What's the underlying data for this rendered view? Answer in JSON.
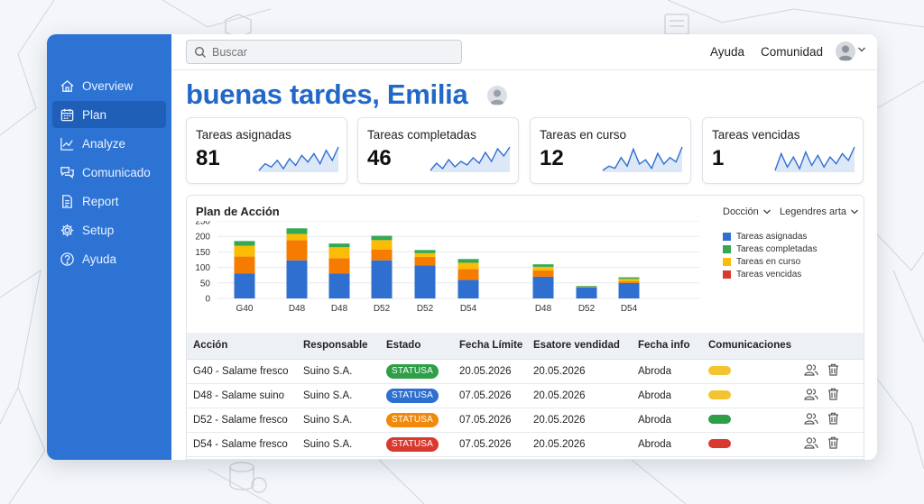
{
  "colors": {
    "sidebar": "#2d73d4",
    "primary": "#2268c9",
    "asignadas": "#2f6fd0",
    "completadas": "#34a853",
    "en_curso": "#fbbc05",
    "vencidas": "#e8411f",
    "orange": "#f57c00"
  },
  "sidebar": {
    "items": [
      {
        "label": "Overview",
        "icon": "home-icon"
      },
      {
        "label": "Plan",
        "icon": "calendar-icon",
        "active": true
      },
      {
        "label": "Analyze",
        "icon": "line-chart-icon"
      },
      {
        "label": "Comunicado",
        "icon": "chat-icon"
      },
      {
        "label": "Report",
        "icon": "document-icon"
      },
      {
        "label": "Setup",
        "icon": "gear-icon"
      },
      {
        "label": "Ayuda",
        "icon": "help-icon"
      }
    ]
  },
  "header": {
    "search_placeholder": "Buscar",
    "help_link": "Ayuda",
    "community_link": "Comunidad"
  },
  "greeting": "buenas tardes, Emilia",
  "cards": [
    {
      "title": "Tareas asignadas",
      "value": "81",
      "spark": [
        4,
        8,
        6,
        10,
        5,
        11,
        7,
        13,
        9,
        14,
        8,
        16,
        10,
        18
      ]
    },
    {
      "title": "Tareas completadas",
      "value": "46",
      "spark": [
        5,
        9,
        6,
        11,
        7,
        10,
        8,
        12,
        9,
        15,
        10,
        17,
        13,
        18
      ]
    },
    {
      "title": "Tareas en curso",
      "value": "12",
      "spark": [
        6,
        8,
        7,
        12,
        8,
        16,
        9,
        11,
        7,
        14,
        9,
        12,
        10,
        17
      ]
    },
    {
      "title": "Tareas vencidas",
      "value": "1",
      "spark": [
        4,
        14,
        6,
        12,
        5,
        15,
        7,
        13,
        6,
        12,
        8,
        14,
        10,
        18
      ]
    }
  ],
  "panel": {
    "title": "Plan de Acción",
    "dropdown1": "Docción",
    "dropdown2": "Legendres arta"
  },
  "chart_data": {
    "type": "bar",
    "stacked": true,
    "categories": [
      "G40",
      "D48",
      "D48",
      "D52",
      "D52",
      "D54",
      "D48",
      "D52",
      "D54"
    ],
    "series": [
      {
        "name": "Tareas asignadas",
        "values": [
          80,
          123,
          80,
          123,
          106,
          60,
          70,
          35,
          50
        ]
      },
      {
        "name": "Tareas completadas",
        "values": [
          15,
          18,
          12,
          14,
          10,
          12,
          8,
          3,
          5
        ]
      },
      {
        "name": "Tareas en curso",
        "values": [
          35,
          20,
          35,
          30,
          12,
          20,
          12,
          0,
          8
        ]
      },
      {
        "name": "Tareas vencidas",
        "values": [
          55,
          65,
          50,
          35,
          28,
          35,
          20,
          2,
          5
        ]
      }
    ],
    "ylim": [
      0,
      250
    ],
    "yticks": [
      "0",
      "50",
      "100",
      "150",
      "200",
      "250"
    ],
    "legend_position": "right",
    "grid": true
  },
  "table": {
    "headers": [
      "Acción",
      "Responsable",
      "Estado",
      "Fecha Límite",
      "Esatore vendidad",
      "Fecha info",
      "Comunicaciones"
    ],
    "rows": [
      {
        "accion": "G40 - Salame fresco",
        "responsable": "Suino S.A.",
        "estado": "STATUSA",
        "estado_color": "#2e9e48",
        "fecha_limite": "20.05.2026",
        "esatore": "20.05.2026",
        "fecha_info": "Abroda",
        "com_color": "#f4c430"
      },
      {
        "accion": "D48 - Salame suino",
        "responsable": "Suino S.A.",
        "estado": "STATUSA",
        "estado_color": "#2f6fd0",
        "fecha_limite": "07.05.2026",
        "esatore": "20.05.2026",
        "fecha_info": "Abroda",
        "com_color": "#f4c430"
      },
      {
        "accion": "D52 - Salame fresco",
        "responsable": "Suino S.A.",
        "estado": "STATUSA",
        "estado_color": "#f08a0c",
        "fecha_limite": "07.05.2026",
        "esatore": "20.05.2026",
        "fecha_info": "Abroda",
        "com_color": "#2e9e48"
      },
      {
        "accion": "D54 - Salame fresco",
        "responsable": "Suino S.A.",
        "estado": "STATUSA",
        "estado_color": "#d93a30",
        "fecha_limite": "07.05.2026",
        "esatore": "20.05.2026",
        "fecha_info": "Abroda",
        "com_color": "#d93a30"
      }
    ]
  }
}
